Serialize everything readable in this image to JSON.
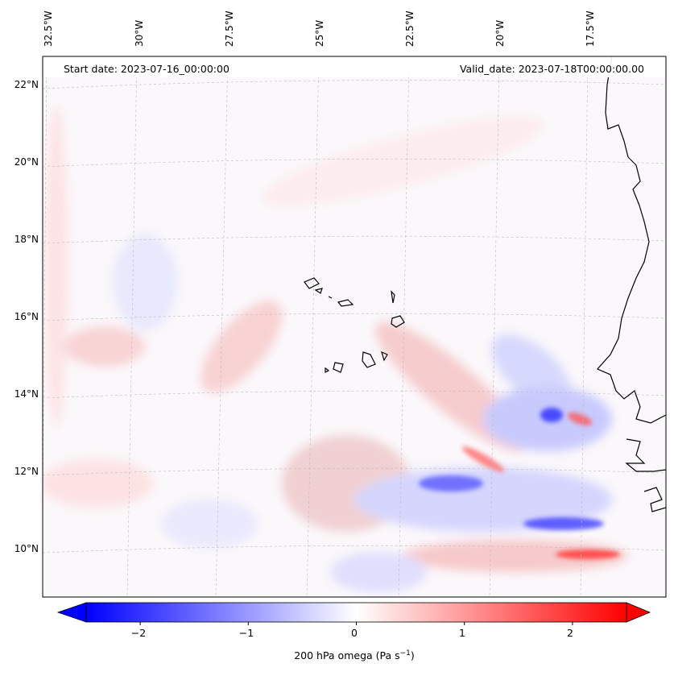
{
  "map": {
    "header_left": "Start date: 2023-07-16_00:00:00",
    "header_right": "Valid_date: 2023-07-18T00:00:00.00",
    "lon_labels": [
      "32.5°W",
      "30°W",
      "27.5°W",
      "25°W",
      "22.5°W",
      "20°W",
      "17.5°W"
    ],
    "lat_labels": [
      "22°N",
      "20°N",
      "18°N",
      "16°N",
      "14°N",
      "12°N",
      "10°N"
    ],
    "extent": {
      "lon_min": -32.5,
      "lon_max": -15.2,
      "lat_min": 8.9,
      "lat_max": 22.8
    },
    "projection": "lambert-conformal",
    "gridlines": true,
    "coastline_color": "#000000"
  },
  "colorbar": {
    "ticks": [
      "−2",
      "−1",
      "0",
      "1",
      "2"
    ],
    "tick_values": [
      -2,
      -1,
      0,
      1,
      2
    ],
    "range": [
      -2.5,
      2.5
    ],
    "extend": "both",
    "label_main": "200 hPa omega (Pa s",
    "label_sup": "−1",
    "label_end": ")",
    "colormap": "bwr",
    "color_min": "#0000ff",
    "color_mid": "#ffffff",
    "color_max": "#ff0000"
  }
}
